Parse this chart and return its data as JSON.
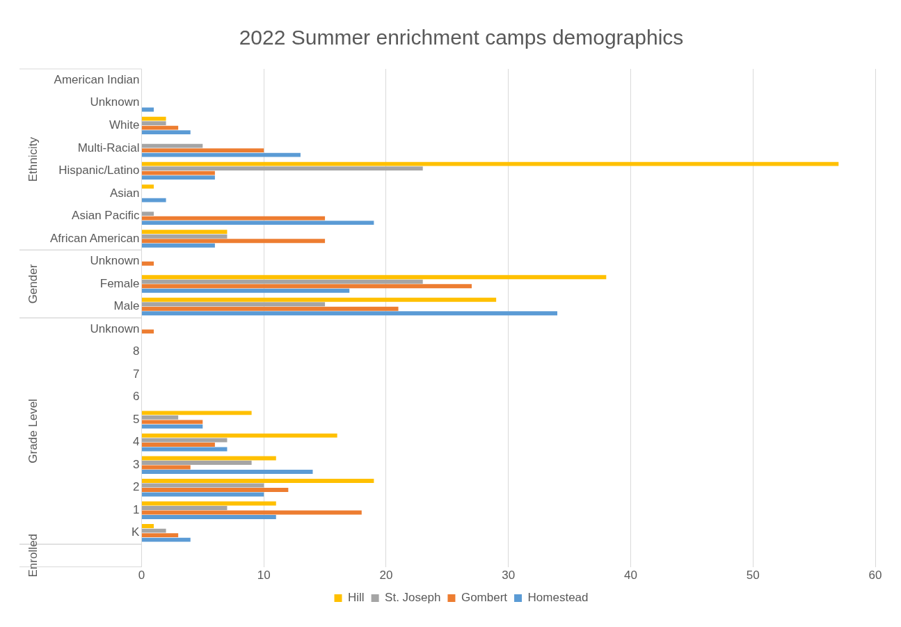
{
  "chart_data": {
    "type": "bar",
    "orientation": "horizontal",
    "title": "2022 Summer enrichment camps demographics",
    "categories": [
      "American Indian",
      "Unknown",
      "White",
      "Multi-Racial",
      "Hispanic/Latino",
      "Asian",
      "Asian Pacific",
      "African American",
      "Unknown",
      "Female",
      "Male",
      "Unknown",
      "8",
      "7",
      "6",
      "5",
      "4",
      "3",
      "2",
      "1",
      "K",
      null
    ],
    "series": [
      {
        "name": "Hill",
        "color": "#ffc000",
        "values": [
          null,
          null,
          2,
          null,
          57,
          1,
          null,
          7,
          null,
          38,
          29,
          null,
          null,
          null,
          null,
          9,
          16,
          11,
          19,
          11,
          1,
          null
        ]
      },
      {
        "name": "St. Joseph",
        "color": "#a5a5a5",
        "values": [
          null,
          null,
          2,
          5,
          23,
          null,
          1,
          7,
          null,
          23,
          15,
          null,
          null,
          null,
          null,
          3,
          7,
          9,
          10,
          7,
          2,
          null
        ]
      },
      {
        "name": "Gombert",
        "color": "#ed7d31",
        "values": [
          null,
          null,
          3,
          10,
          6,
          null,
          15,
          15,
          1,
          27,
          21,
          1,
          null,
          null,
          null,
          5,
          6,
          4,
          12,
          18,
          3,
          null
        ]
      },
      {
        "name": "Homestead",
        "color": "#5b9bd5",
        "values": [
          null,
          1,
          4,
          13,
          6,
          2,
          19,
          6,
          null,
          17,
          34,
          null,
          null,
          null,
          null,
          5,
          7,
          14,
          10,
          11,
          4,
          null
        ]
      }
    ],
    "xlim": [
      0,
      60
    ],
    "xticks": [
      0,
      10,
      20,
      30,
      40,
      50,
      60
    ],
    "grid": "x",
    "legend": "bottom",
    "annotations": [
      "Ethnicity",
      "Gender",
      "Grade Level",
      "Enrolled"
    ]
  }
}
